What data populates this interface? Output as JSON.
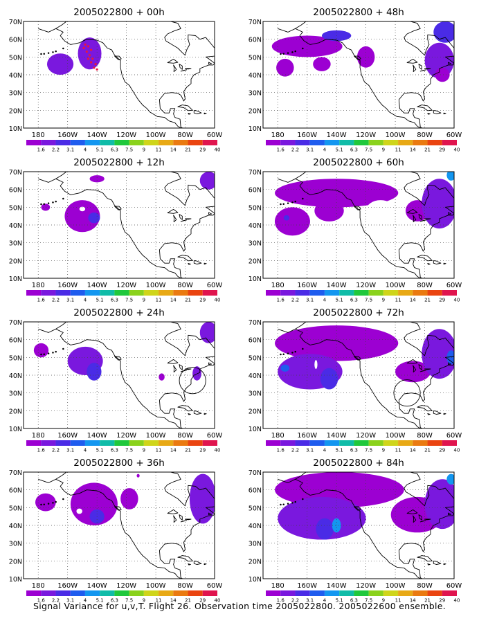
{
  "caption": "Signal Variance for u,v,T. Flight 26. Observation time 2005022800. 2005022600 ensemble.",
  "lat_labels": [
    "70N",
    "60N",
    "50N",
    "40N",
    "30N",
    "20N",
    "10N"
  ],
  "lon_labels": [
    "180",
    "160W",
    "140W",
    "120W",
    "100W",
    "80W",
    "60W"
  ],
  "colorbar": {
    "labels": [
      "1.6",
      "2.2",
      "3.1",
      "4",
      "5.1",
      "6.3",
      "7.5",
      "9",
      "11",
      "14",
      "21",
      "29",
      "40"
    ],
    "colors": [
      "#9c00d2",
      "#7a18de",
      "#4a2be6",
      "#1f5cee",
      "#1396f0",
      "#10bca8",
      "#1fc83c",
      "#8ad21c",
      "#cfd51a",
      "#e8a915",
      "#ea7a10",
      "#ea4410",
      "#e0154e"
    ]
  },
  "panels": [
    {
      "title": "2005022800 + 00h",
      "blobs": [
        {
          "lon": -165,
          "lat": 46,
          "rlon": 9,
          "rlat": 6,
          "level": 1
        },
        {
          "lon": -145,
          "lat": 52,
          "rlon": 8,
          "rlat": 9,
          "level": 1
        },
        {
          "lon": -145,
          "lat": 51,
          "rlon": 5,
          "rlat": 6,
          "level": 1
        }
      ],
      "dots": [
        {
          "lon": -148,
          "lat": 57
        },
        {
          "lon": -146,
          "lat": 56
        },
        {
          "lon": -144,
          "lat": 54
        },
        {
          "lon": -147,
          "lat": 53
        },
        {
          "lon": -145,
          "lat": 51
        },
        {
          "lon": -143,
          "lat": 49
        },
        {
          "lon": -146,
          "lat": 49
        },
        {
          "lon": -144,
          "lat": 47
        },
        {
          "lon": -141,
          "lat": 46
        },
        {
          "lon": -140,
          "lat": 43
        },
        {
          "lon": -142,
          "lat": 44
        },
        {
          "lon": -149,
          "lat": 55
        }
      ],
      "circle": null
    },
    {
      "title": "2005022800 + 12h",
      "blobs": [
        {
          "lon": -175,
          "lat": 50,
          "rlon": 3,
          "rlat": 2,
          "level": 0
        },
        {
          "lon": -150,
          "lat": 45,
          "rlon": 12,
          "rlat": 9,
          "level": 0
        },
        {
          "lon": -142,
          "lat": 44,
          "rlon": 4,
          "rlat": 3,
          "level": 2
        },
        {
          "lon": -140,
          "lat": 66,
          "rlon": 5,
          "rlat": 2,
          "level": 0
        },
        {
          "lon": -64,
          "lat": 65,
          "rlon": 6,
          "rlat": 5,
          "level": 1
        }
      ],
      "holes": [
        {
          "lon": -150,
          "lat": 49,
          "rlon": 2,
          "rlat": 1.3
        }
      ],
      "dots": [],
      "circle": null
    },
    {
      "title": "2005022800 + 24h",
      "blobs": [
        {
          "lon": -178,
          "lat": 54,
          "rlon": 5,
          "rlat": 4,
          "level": 0
        },
        {
          "lon": -148,
          "lat": 48,
          "rlon": 12,
          "rlat": 8,
          "level": 1
        },
        {
          "lon": -142,
          "lat": 42,
          "rlon": 5,
          "rlat": 5,
          "level": 2
        },
        {
          "lon": -96,
          "lat": 39,
          "rlon": 2,
          "rlat": 2,
          "level": 0
        },
        {
          "lon": -72,
          "lat": 41,
          "rlon": 3,
          "rlat": 4,
          "level": 1
        },
        {
          "lon": -64,
          "lat": 64,
          "rlon": 6,
          "rlat": 6,
          "level": 1
        }
      ],
      "dots": [],
      "circle": {
        "lon": -75,
        "lat": 37,
        "r": 9
      }
    },
    {
      "title": "2005022800 + 36h",
      "blobs": [
        {
          "lon": -175,
          "lat": 53,
          "rlon": 7,
          "rlat": 5,
          "level": 0
        },
        {
          "lon": -142,
          "lat": 52,
          "rlon": 16,
          "rlat": 12,
          "level": 0
        },
        {
          "lon": -140,
          "lat": 45,
          "rlon": 5,
          "rlat": 4,
          "level": 2
        },
        {
          "lon": -118,
          "lat": 55,
          "rlon": 6,
          "rlat": 6,
          "level": 0
        },
        {
          "lon": -112,
          "lat": 68,
          "rlon": 1,
          "rlat": 1,
          "level": 0
        },
        {
          "lon": -68,
          "lat": 55,
          "rlon": 9,
          "rlat": 14,
          "level": 1
        }
      ],
      "holes": [
        {
          "lon": -152,
          "lat": 48,
          "rlon": 2,
          "rlat": 1.5
        }
      ],
      "dots": [],
      "circle": null
    },
    {
      "title": "2005022800 + 48h",
      "blobs": [
        {
          "lon": -160,
          "lat": 56,
          "rlon": 24,
          "rlat": 6,
          "level": 0
        },
        {
          "lon": -140,
          "lat": 62,
          "rlon": 10,
          "rlat": 3,
          "level": 2
        },
        {
          "lon": -175,
          "lat": 44,
          "rlon": 6,
          "rlat": 5,
          "level": 0
        },
        {
          "lon": -150,
          "lat": 46,
          "rlon": 6,
          "rlat": 4,
          "level": 0
        },
        {
          "lon": -120,
          "lat": 50,
          "rlon": 6,
          "rlat": 6,
          "level": 0
        },
        {
          "lon": -70,
          "lat": 48,
          "rlon": 10,
          "rlat": 10,
          "level": 1
        },
        {
          "lon": -66,
          "lat": 64,
          "rlon": 8,
          "rlat": 6,
          "level": 2
        },
        {
          "lon": -68,
          "lat": 40,
          "rlon": 5,
          "rlat": 4,
          "level": 0
        }
      ],
      "holes": [],
      "dots": [],
      "circle": null
    },
    {
      "title": "2005022800 + 60h",
      "blobs": [
        {
          "lon": -140,
          "lat": 58,
          "rlon": 42,
          "rlat": 8,
          "level": 0
        },
        {
          "lon": -170,
          "lat": 42,
          "rlon": 12,
          "rlat": 8,
          "level": 0
        },
        {
          "lon": -174,
          "lat": 44,
          "rlon": 2,
          "rlat": 1.5,
          "level": 2
        },
        {
          "lon": -145,
          "lat": 48,
          "rlon": 10,
          "rlat": 6,
          "level": 0
        },
        {
          "lon": -85,
          "lat": 48,
          "rlon": 8,
          "rlat": 6,
          "level": 0
        },
        {
          "lon": -70,
          "lat": 52,
          "rlon": 12,
          "rlat": 14,
          "level": 1
        },
        {
          "lon": -62,
          "lat": 68,
          "rlon": 3,
          "rlat": 3,
          "level": 4
        }
      ],
      "holes": [
        {
          "lon": -110,
          "lat": 48,
          "rlon": 10,
          "rlat": 6
        }
      ],
      "dots": [],
      "circle": null
    },
    {
      "title": "2005022800 + 72h",
      "blobs": [
        {
          "lon": -140,
          "lat": 58,
          "rlon": 42,
          "rlat": 10,
          "level": 0
        },
        {
          "lon": -158,
          "lat": 42,
          "rlon": 22,
          "rlat": 10,
          "level": 1
        },
        {
          "lon": -175,
          "lat": 44,
          "rlon": 3,
          "rlat": 2,
          "level": 3
        },
        {
          "lon": -145,
          "lat": 38,
          "rlon": 6,
          "rlat": 6,
          "level": 2
        },
        {
          "lon": -88,
          "lat": 42,
          "rlon": 12,
          "rlat": 6,
          "level": 0
        },
        {
          "lon": -70,
          "lat": 52,
          "rlon": 12,
          "rlat": 14,
          "level": 1
        },
        {
          "lon": -62,
          "lat": 50,
          "rlon": 3,
          "rlat": 4,
          "level": 3
        }
      ],
      "holes": [
        {
          "lon": -154,
          "lat": 46,
          "rlon": 1,
          "rlat": 2.5
        }
      ],
      "dots": [],
      "circle": {
        "lon": -92,
        "lat": 30,
        "r": 9
      }
    },
    {
      "title": "2005022800 + 84h",
      "blobs": [
        {
          "lon": -138,
          "lat": 60,
          "rlon": 44,
          "rlat": 10,
          "level": 0
        },
        {
          "lon": -150,
          "lat": 44,
          "rlon": 30,
          "rlat": 12,
          "level": 1
        },
        {
          "lon": -148,
          "lat": 38,
          "rlon": 6,
          "rlat": 6,
          "level": 2
        },
        {
          "lon": -140,
          "lat": 40,
          "rlon": 3,
          "rlat": 4,
          "level": 4
        },
        {
          "lon": -85,
          "lat": 46,
          "rlon": 18,
          "rlat": 10,
          "level": 0
        },
        {
          "lon": -68,
          "lat": 52,
          "rlon": 12,
          "rlat": 14,
          "level": 1
        },
        {
          "lon": -62,
          "lat": 66,
          "rlon": 3,
          "rlat": 3,
          "level": 4
        }
      ],
      "holes": [],
      "dots": [],
      "circle": null
    }
  ]
}
